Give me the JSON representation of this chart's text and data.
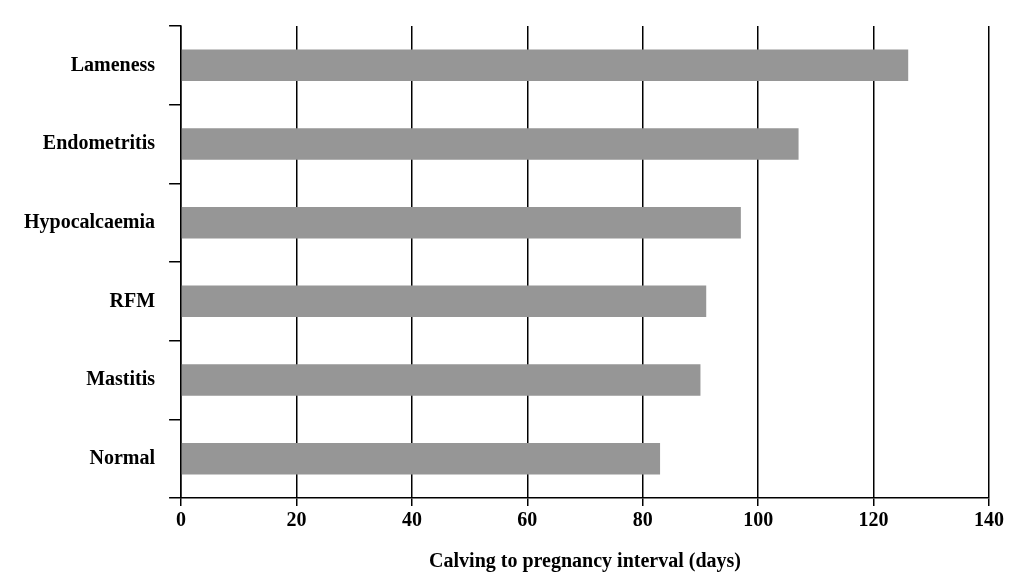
{
  "chart_data": {
    "type": "bar",
    "orientation": "horizontal",
    "xlabel": "Calving to pregnancy interval (days)",
    "categories": [
      "Lameness",
      "Endometritis",
      "Hypocalcaemia",
      "RFM",
      "Mastitis",
      "Normal"
    ],
    "values": [
      126,
      107,
      97,
      91,
      90,
      83
    ],
    "color": "#969696",
    "xlim": [
      0,
      140
    ],
    "xticks": [
      0,
      20,
      40,
      60,
      80,
      100,
      120,
      140
    ],
    "grid": "x"
  }
}
